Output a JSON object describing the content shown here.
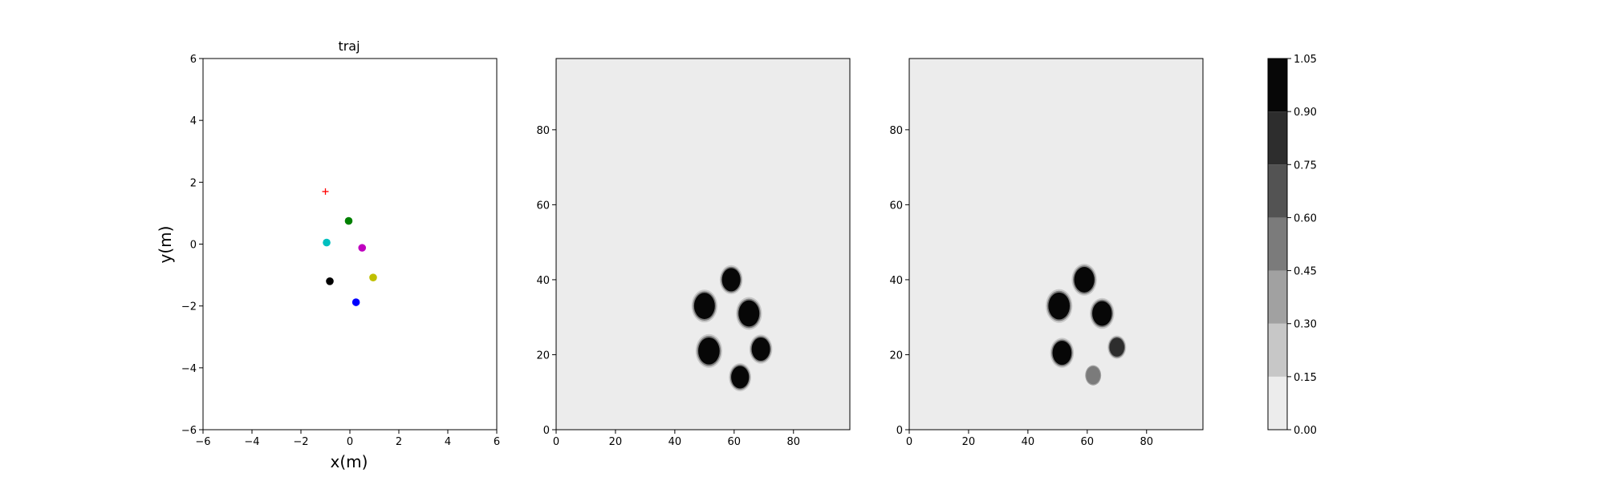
{
  "chart_data": [
    {
      "type": "scatter",
      "title": "traj",
      "xlabel": "x(m)",
      "ylabel": "y(m)",
      "xlim": [
        -6,
        6
      ],
      "ylim": [
        -6,
        6
      ],
      "xticks": [
        "−6",
        "−4",
        "−2",
        "0",
        "2",
        "4",
        "6"
      ],
      "yticks": [
        "−6",
        "−4",
        "−2",
        "0",
        "2",
        "4",
        "6"
      ],
      "grid": false,
      "points": [
        {
          "x": -1.0,
          "y": 1.7,
          "marker": "plus",
          "color": "#ff0000"
        },
        {
          "x": -0.05,
          "y": 0.75,
          "marker": "circle",
          "color": "#008000"
        },
        {
          "x": -0.95,
          "y": 0.05,
          "marker": "circle",
          "color": "#00bfbf"
        },
        {
          "x": 0.5,
          "y": -0.12,
          "marker": "circle",
          "color": "#bf00bf"
        },
        {
          "x": 0.95,
          "y": -1.08,
          "marker": "circle",
          "color": "#bfbf00"
        },
        {
          "x": -0.82,
          "y": -1.2,
          "marker": "circle",
          "color": "#000000"
        },
        {
          "x": 0.25,
          "y": -1.88,
          "marker": "circle",
          "color": "#0000ff"
        }
      ]
    },
    {
      "type": "heatmap",
      "title": "",
      "xlim": [
        0,
        99
      ],
      "ylim": [
        0,
        99
      ],
      "xticks": [
        "0",
        "20",
        "40",
        "60",
        "80"
      ],
      "yticks": [
        "0",
        "20",
        "40",
        "60",
        "80"
      ],
      "background_value": 0.0,
      "blobs": [
        {
          "x": 59,
          "y": 40,
          "r": 3.1,
          "value": 1.0
        },
        {
          "x": 50,
          "y": 33,
          "r": 3.5,
          "value": 1.0
        },
        {
          "x": 65,
          "y": 31,
          "r": 3.5,
          "value": 1.0
        },
        {
          "x": 51.5,
          "y": 21,
          "r": 3.6,
          "value": 1.0
        },
        {
          "x": 69,
          "y": 21.5,
          "r": 3.1,
          "value": 1.0
        },
        {
          "x": 62,
          "y": 14,
          "r": 3.0,
          "value": 1.0
        }
      ]
    },
    {
      "type": "heatmap",
      "title": "",
      "xlim": [
        0,
        99
      ],
      "ylim": [
        0,
        99
      ],
      "xticks": [
        "0",
        "20",
        "40",
        "60",
        "80"
      ],
      "yticks": [
        "0",
        "20",
        "40",
        "60",
        "80"
      ],
      "background_value": 0.0,
      "blobs": [
        {
          "x": 59,
          "y": 40,
          "r": 3.4,
          "value": 0.97
        },
        {
          "x": 50.5,
          "y": 33,
          "r": 3.6,
          "value": 1.0
        },
        {
          "x": 65,
          "y": 31,
          "r": 3.3,
          "value": 0.95
        },
        {
          "x": 51.5,
          "y": 20.5,
          "r": 3.2,
          "value": 0.93
        },
        {
          "x": 70,
          "y": 22,
          "r": 2.5,
          "value": 0.85
        },
        {
          "x": 62,
          "y": 14.5,
          "r": 2.4,
          "value": 0.55
        }
      ]
    },
    {
      "type": "colorbar",
      "levels": [
        0.0,
        0.15,
        0.3,
        0.45,
        0.6,
        0.75,
        0.9,
        1.05
      ],
      "tick_labels": [
        "0.00",
        "0.15",
        "0.30",
        "0.45",
        "0.60",
        "0.75",
        "0.90",
        "1.05"
      ],
      "colors": [
        "#ececec",
        "#c7c7c7",
        "#a1a1a1",
        "#7b7b7b",
        "#535353",
        "#2d2d2d",
        "#070707"
      ]
    }
  ]
}
